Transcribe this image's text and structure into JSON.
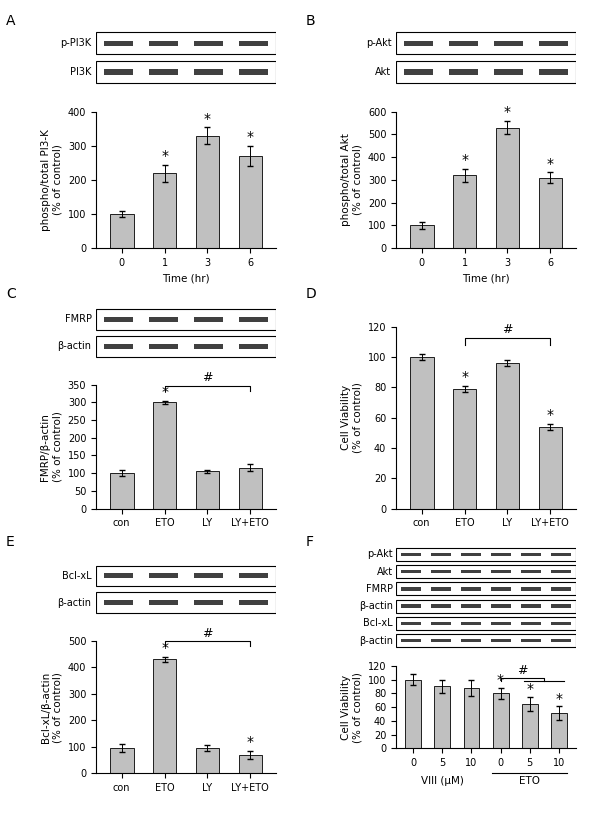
{
  "chart_data": [
    {
      "type": "bar",
      "title": "A",
      "blots": [
        "p-PI3K",
        "PI3K"
      ],
      "categories": [
        "0",
        "1",
        "3",
        "6"
      ],
      "values": [
        100,
        220,
        330,
        270
      ],
      "errors": [
        10,
        25,
        25,
        30
      ],
      "significance": [
        null,
        "*",
        "*",
        "*"
      ],
      "color": "#c0c0c0",
      "x_label": "Time (hr)",
      "y_label": "phospho/total PI3-K\n(% of control)",
      "ylim": [
        0,
        400
      ],
      "yticks": [
        0,
        100,
        200,
        300,
        400
      ]
    },
    {
      "type": "bar",
      "title": "B",
      "blots": [
        "p-Akt",
        "Akt"
      ],
      "categories": [
        "0",
        "1",
        "3",
        "6"
      ],
      "values": [
        100,
        320,
        530,
        310
      ],
      "errors": [
        15,
        30,
        30,
        25
      ],
      "significance": [
        null,
        "*",
        "*",
        "*"
      ],
      "color": "#c0c0c0",
      "x_label": "Time (hr)",
      "y_label": "phospho/total Akt\n(% of control)",
      "ylim": [
        0,
        600
      ],
      "yticks": [
        0,
        100,
        200,
        300,
        400,
        500,
        600
      ]
    },
    {
      "type": "bar",
      "title": "C",
      "blots": [
        "FMRP",
        "β-actin"
      ],
      "categories": [
        "con",
        "ETO",
        "LY",
        "LY+ETO"
      ],
      "values": [
        100,
        300,
        105,
        115
      ],
      "errors": [
        8,
        5,
        5,
        10
      ],
      "significance": [
        null,
        "*",
        null,
        null
      ],
      "comparison": {
        "from": [
          1
        ],
        "to": [
          3
        ],
        "label": "#"
      },
      "color": "#c0c0c0",
      "y_label": "FMRP/β-actin\n(% of control)",
      "ylim": [
        0,
        350
      ],
      "yticks": [
        0,
        50,
        100,
        150,
        200,
        250,
        300,
        350
      ]
    },
    {
      "type": "bar",
      "title": "D",
      "blots": [],
      "categories": [
        "con",
        "ETO",
        "LY",
        "LY+ETO"
      ],
      "values": [
        100,
        79,
        96,
        54
      ],
      "errors": [
        2,
        2,
        2,
        2
      ],
      "significance": [
        null,
        "*",
        null,
        "*"
      ],
      "comparison": {
        "from": [
          1
        ],
        "to": [
          3
        ],
        "label": "#"
      },
      "color": "#c0c0c0",
      "y_label": "Cell Viability\n(% of control)",
      "ylim": [
        0,
        120
      ],
      "yticks": [
        0,
        20,
        40,
        60,
        80,
        100,
        120
      ]
    },
    {
      "type": "bar",
      "title": "E",
      "blots": [
        "Bcl-xL",
        "β-actin"
      ],
      "categories": [
        "con",
        "ETO",
        "LY",
        "LY+ETO"
      ],
      "values": [
        95,
        430,
        95,
        70
      ],
      "errors": [
        15,
        10,
        12,
        15
      ],
      "significance": [
        null,
        "*",
        null,
        "*"
      ],
      "comparison": {
        "from": [
          1
        ],
        "to": [
          3
        ],
        "label": "#"
      },
      "color": "#c0c0c0",
      "y_label": "Bcl-xL/β-actin\n(% of control)",
      "ylim": [
        0,
        500
      ],
      "yticks": [
        0,
        100,
        200,
        300,
        400,
        500
      ]
    },
    {
      "type": "bar",
      "title": "F",
      "blots": [
        "p-Akt",
        "Akt",
        "FMRP",
        "β-actin",
        "Bcl-xL",
        "β-actin"
      ],
      "categories": [
        "0",
        "5",
        "10",
        "0",
        "5",
        "10"
      ],
      "values": [
        100,
        90,
        88,
        80,
        65,
        51
      ],
      "errors": [
        8,
        10,
        12,
        8,
        10,
        10
      ],
      "significance": [
        null,
        null,
        null,
        "*",
        "*",
        "*"
      ],
      "comparison": {
        "from": [
          3
        ],
        "to": [
          4,
          5
        ],
        "label": "#"
      },
      "group": {
        "label": "ETO",
        "members": [
          3,
          4,
          5
        ]
      },
      "color": "#c0c0c0",
      "x_label": "VIII (μM)",
      "y_label": "Cell Viability\n(% of control)",
      "ylim": [
        0,
        120
      ],
      "yticks": [
        0,
        20,
        40,
        60,
        80,
        100,
        120
      ]
    }
  ]
}
